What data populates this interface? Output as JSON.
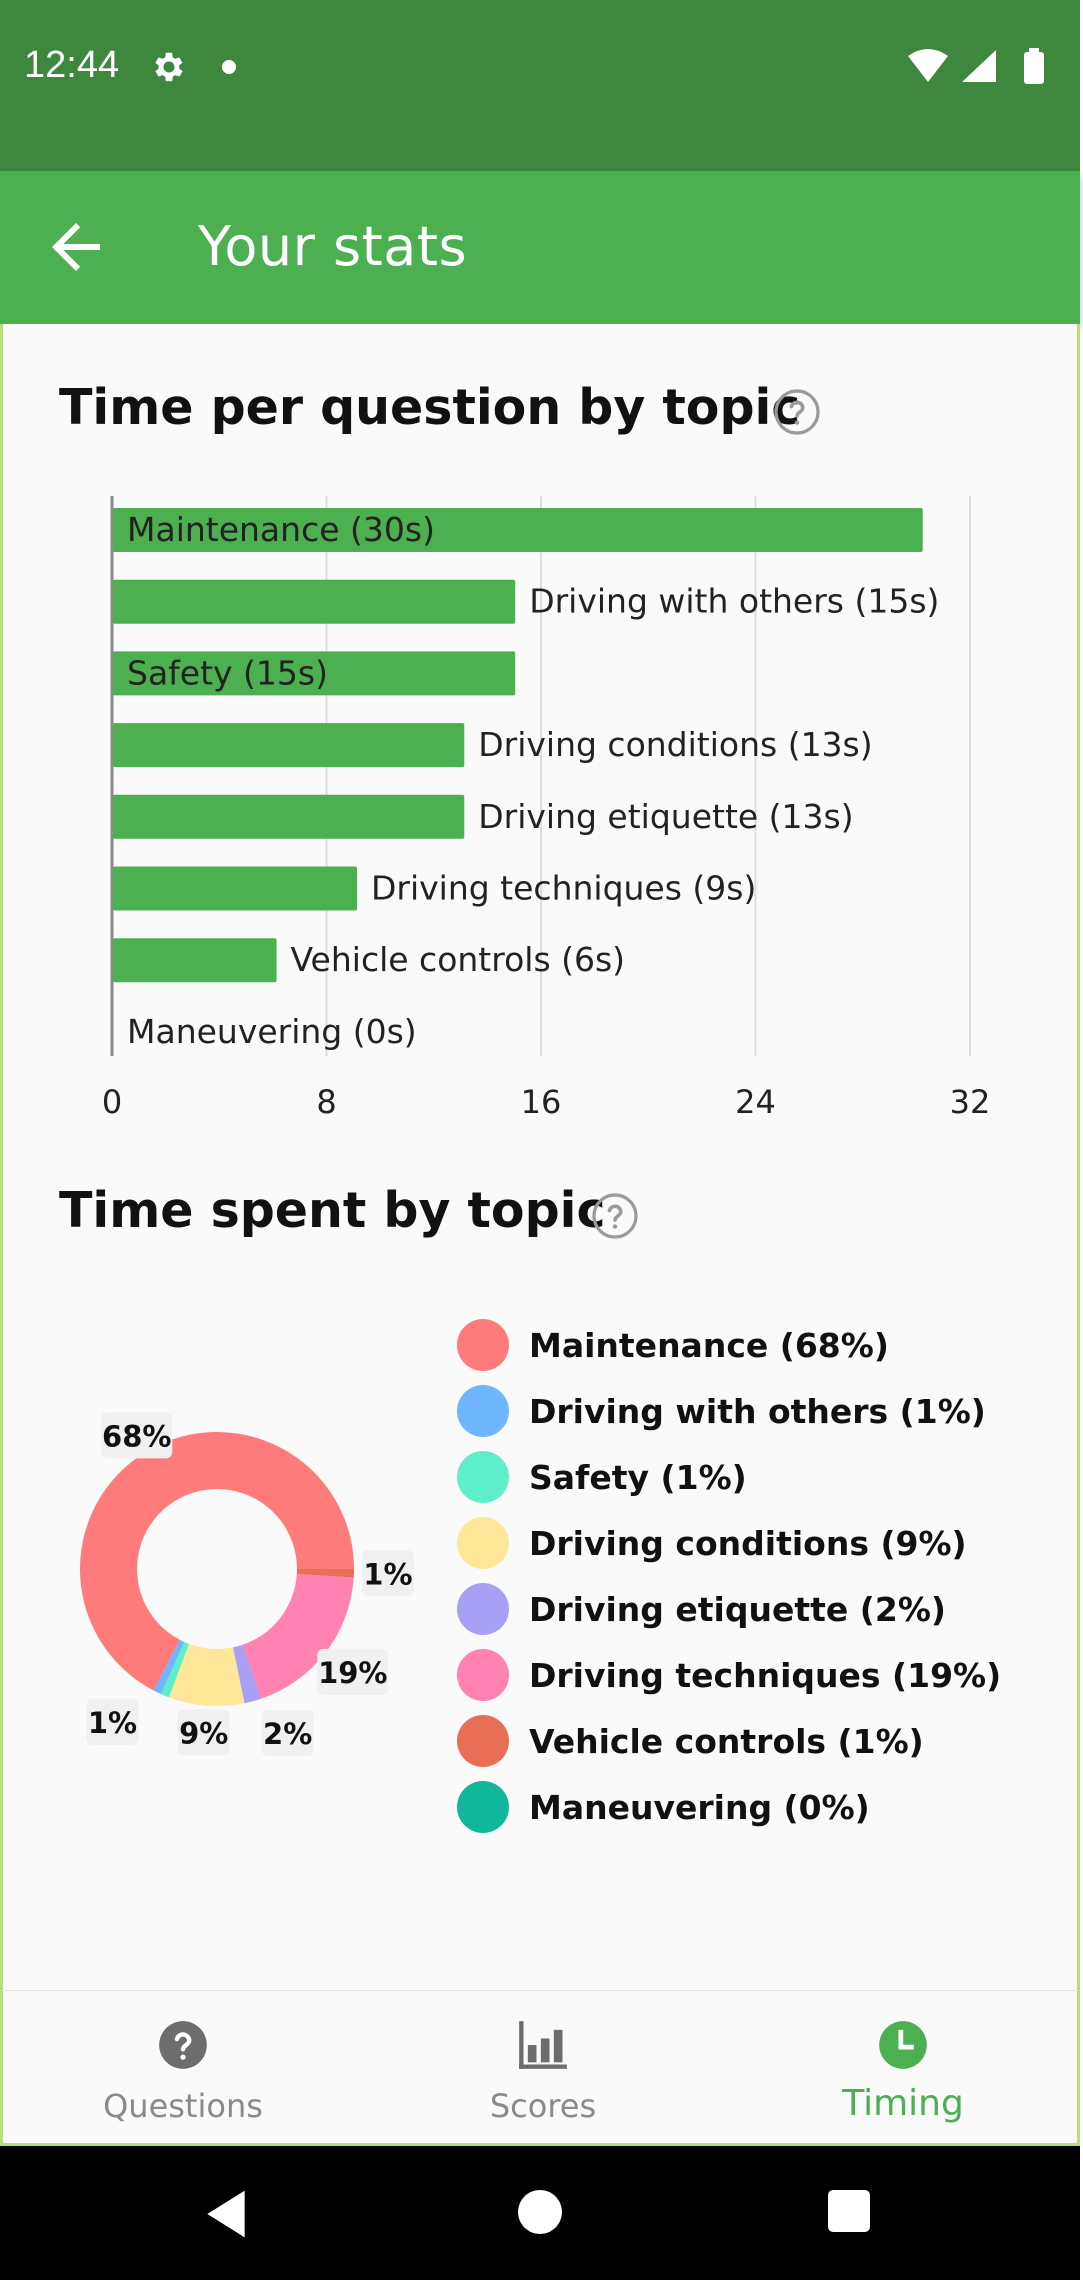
{
  "status_bar": {
    "time": "12:44"
  },
  "app_bar": {
    "title": "Your stats"
  },
  "bar_section": {
    "title": "Time per question by topic"
  },
  "donut_section": {
    "title": "Time spent by topic"
  },
  "chart_data": [
    {
      "type": "bar",
      "orientation": "horizontal",
      "title": "Time per question by topic",
      "categories": [
        "Maintenance",
        "Driving with others",
        "Safety",
        "Driving conditions",
        "Driving etiquette",
        "Driving techniques",
        "Vehicle controls",
        "Maneuvering"
      ],
      "labels": [
        "Maintenance (30s)",
        "Driving with others (15s)",
        "Safety (15s)",
        "Driving conditions (13s)",
        "Driving etiquette (13s)",
        "Driving techniques (9s)",
        "Vehicle controls (6s)",
        "Maneuvering (0s)"
      ],
      "values": [
        30.2,
        15,
        15,
        13.1,
        13.1,
        9.1,
        6.1,
        0
      ],
      "xlim": [
        0,
        32
      ],
      "ticks": [
        "0",
        "8",
        "16",
        "24",
        "32"
      ],
      "tick_values": [
        0,
        8,
        16,
        24,
        32
      ],
      "grid": true,
      "color": "#4caf50"
    },
    {
      "type": "pie",
      "variant": "donut",
      "title": "Time spent by topic",
      "categories": [
        "Maintenance",
        "Driving with others",
        "Safety",
        "Driving conditions",
        "Driving etiquette",
        "Driving techniques",
        "Vehicle controls",
        "Maneuvering"
      ],
      "values": [
        68,
        1,
        1,
        9,
        2,
        19,
        1,
        0
      ],
      "slice_labels": [
        "68%",
        "1%",
        "",
        "9%",
        "2%",
        "19%",
        "1%",
        ""
      ],
      "legend": [
        "Maintenance (68%)",
        "Driving with others (1%)",
        "Safety (1%)",
        "Driving conditions (9%)",
        "Driving etiquette (2%)",
        "Driving techniques (19%)",
        "Vehicle controls (1%)",
        "Maneuvering (0%)"
      ],
      "colors": [
        "#ff7b7b",
        "#6fb6ff",
        "#5eeec9",
        "#ffe79a",
        "#a7a0f5",
        "#ff82b2",
        "#e86f55",
        "#10b79a"
      ],
      "legend_position": "right"
    }
  ],
  "bottom_nav": {
    "items": [
      {
        "label": "Questions",
        "icon": "help-circle-icon",
        "active": false
      },
      {
        "label": "Scores",
        "icon": "bar-chart-icon",
        "active": false
      },
      {
        "label": "Timing",
        "icon": "clock-icon",
        "active": true
      }
    ]
  },
  "colors": {
    "status_bar": "#3e873f",
    "app_bar": "#4caf50",
    "accent": "#4caf50"
  }
}
